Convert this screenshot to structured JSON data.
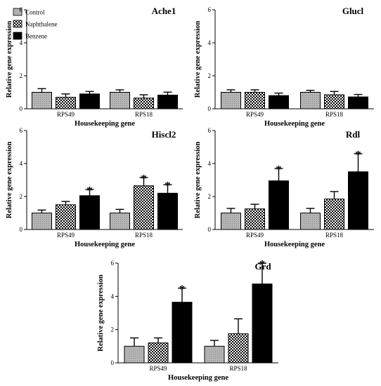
{
  "legend": [
    {
      "label": "Control",
      "pattern": "control"
    },
    {
      "label": "Naphthalene",
      "pattern": "naphthalene"
    },
    {
      "label": "Benzene",
      "pattern": "benzene"
    }
  ],
  "colors": {
    "control_fill": "#b8b8b8",
    "benzene_fill": "#000000",
    "checker_dark": "#000000",
    "checker_light": "#ffffff"
  },
  "chart_data": [
    {
      "type": "bar",
      "title": "Ache1",
      "xlabel": "Housekeeping gene",
      "ylabel": "Relative gene expression",
      "categories": [
        "RPS49",
        "RPS18"
      ],
      "ylim": [
        0,
        6
      ],
      "yticks": [
        0,
        2,
        4,
        6
      ],
      "series": [
        {
          "name": "Control",
          "values": [
            1.0,
            1.0
          ],
          "errors": [
            0.22,
            0.15
          ],
          "significant": [
            false,
            false
          ]
        },
        {
          "name": "Naphthalene",
          "values": [
            0.7,
            0.65
          ],
          "errors": [
            0.2,
            0.2
          ],
          "significant": [
            false,
            false
          ]
        },
        {
          "name": "Benzene",
          "values": [
            0.9,
            0.83
          ],
          "errors": [
            0.15,
            0.18
          ],
          "significant": [
            false,
            false
          ]
        }
      ]
    },
    {
      "type": "bar",
      "title": "Glucl",
      "xlabel": "Housekeeping gene",
      "ylabel": "Relative gene expression",
      "categories": [
        "RPS49",
        "RPS18"
      ],
      "ylim": [
        0,
        6
      ],
      "yticks": [
        0,
        2,
        4,
        6
      ],
      "series": [
        {
          "name": "Control",
          "values": [
            1.0,
            1.0
          ],
          "errors": [
            0.15,
            0.12
          ],
          "significant": [
            false,
            false
          ]
        },
        {
          "name": "Naphthalene",
          "values": [
            1.0,
            0.85
          ],
          "errors": [
            0.15,
            0.2
          ],
          "significant": [
            false,
            false
          ]
        },
        {
          "name": "Benzene",
          "values": [
            0.8,
            0.72
          ],
          "errors": [
            0.15,
            0.15
          ],
          "significant": [
            false,
            false
          ]
        }
      ]
    },
    {
      "type": "bar",
      "title": "Hiscl2",
      "xlabel": "Housekeeping gene",
      "ylabel": "Relative gene expression",
      "categories": [
        "RPS49",
        "RPS18"
      ],
      "ylim": [
        0,
        6
      ],
      "yticks": [
        0,
        2,
        4,
        6
      ],
      "series": [
        {
          "name": "Control",
          "values": [
            1.0,
            1.0
          ],
          "errors": [
            0.18,
            0.22
          ],
          "significant": [
            false,
            false
          ]
        },
        {
          "name": "Naphthalene",
          "values": [
            1.5,
            2.65
          ],
          "errors": [
            0.2,
            0.5
          ],
          "significant": [
            false,
            true
          ]
        },
        {
          "name": "Benzene",
          "values": [
            2.05,
            2.2
          ],
          "errors": [
            0.38,
            0.52
          ],
          "significant": [
            true,
            true
          ]
        }
      ]
    },
    {
      "type": "bar",
      "title": "Rdl",
      "xlabel": "Housekeeping gene",
      "ylabel": "Relative gene expression",
      "categories": [
        "RPS49",
        "RPS18"
      ],
      "ylim": [
        0,
        6
      ],
      "yticks": [
        0,
        2,
        4,
        6
      ],
      "series": [
        {
          "name": "Control",
          "values": [
            1.0,
            1.0
          ],
          "errors": [
            0.28,
            0.28
          ],
          "significant": [
            false,
            false
          ]
        },
        {
          "name": "Naphthalene",
          "values": [
            1.25,
            1.85
          ],
          "errors": [
            0.28,
            0.45
          ],
          "significant": [
            false,
            false
          ]
        },
        {
          "name": "Benzene",
          "values": [
            2.95,
            3.5
          ],
          "errors": [
            0.75,
            1.1
          ],
          "significant": [
            true,
            true
          ]
        }
      ]
    },
    {
      "type": "bar",
      "title": "Grd",
      "xlabel": "Housekeeping gene",
      "ylabel": "Relative gene expression",
      "categories": [
        "RPS49",
        "RPS18"
      ],
      "ylim": [
        0,
        6
      ],
      "yticks": [
        0,
        2,
        4,
        6
      ],
      "series": [
        {
          "name": "Control",
          "values": [
            1.0,
            1.0
          ],
          "errors": [
            0.5,
            0.35
          ],
          "significant": [
            false,
            false
          ]
        },
        {
          "name": "Naphthalene",
          "values": [
            1.2,
            1.75
          ],
          "errors": [
            0.3,
            0.9
          ],
          "significant": [
            false,
            false
          ]
        },
        {
          "name": "Benzene",
          "values": [
            3.65,
            4.75
          ],
          "errors": [
            0.85,
            1.25
          ],
          "significant": [
            true,
            true
          ]
        }
      ]
    }
  ]
}
